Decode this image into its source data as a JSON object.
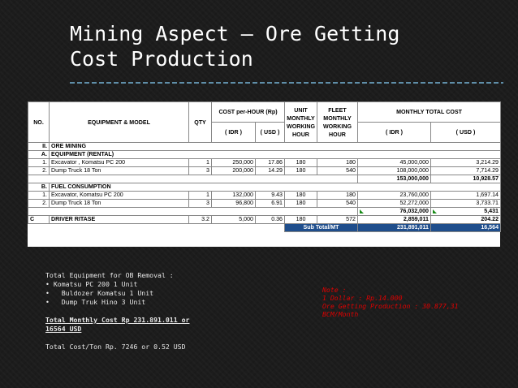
{
  "title": {
    "line1": "Mining Aspect – Ore Getting",
    "line2": "Cost Production"
  },
  "table": {
    "header": {
      "no": "NO.",
      "equipment": "EQUIPMENT & MODEL",
      "qty": "QTY",
      "cost_hour": "COST per-HOUR  (Rp)",
      "unit_monthly": "UNIT MONTHLY WORKING HOUR",
      "fleet_monthly": "FLEET MONTHLY WORKING HOUR",
      "monthly_total": "MONTHLY TOTAL  COST",
      "idr": "( IDR )",
      "usd": "( USD )"
    },
    "section_ii": {
      "no": "II.",
      "label": "ORE MINING"
    },
    "section_a": {
      "no": "A.",
      "label": "EQUIPMENT (RENTAL)"
    },
    "rows_a": [
      {
        "no": "1.",
        "equip": "Excavator , Komatsu PC 200",
        "qty": "1",
        "cost_idr": "250,000",
        "cost_usd": "17.86",
        "unit_hr": "180",
        "fleet_hr": "180",
        "total_idr": "45,000,000",
        "total_usd": "3,214.29"
      },
      {
        "no": "2.",
        "equip": "Dump Truck 18 Ton",
        "qty": "3",
        "cost_idr": "200,000",
        "cost_usd": "14.29",
        "unit_hr": "180",
        "fleet_hr": "540",
        "total_idr": "108,000,000",
        "total_usd": "7,714.29"
      }
    ],
    "subtotal_a": {
      "idr": "153,000,000",
      "usd": "10,928.57"
    },
    "section_b": {
      "no": "B.",
      "label": "FUEL CONSUMPTION"
    },
    "rows_b": [
      {
        "no": "1.",
        "equip": "Excavator, Komatsu PC 200",
        "qty": "1",
        "cost_idr": "132,000",
        "cost_usd": "9.43",
        "unit_hr": "180",
        "fleet_hr": "180",
        "total_idr": "23,760,000",
        "total_usd": "1,697.14"
      },
      {
        "no": "2.",
        "equip": "Dump Truck 18 Ton",
        "qty": "3",
        "cost_idr": "96,800",
        "cost_usd": "6.91",
        "unit_hr": "180",
        "fleet_hr": "540",
        "total_idr": "52,272,000",
        "total_usd": "3,733.71"
      }
    ],
    "subtotal_b": {
      "idr": "76,032,000",
      "usd": "5,431"
    },
    "row_c": {
      "no": "C",
      "label": "DRIVER RITASE",
      "qty": "3.2",
      "cost_idr": "5,000",
      "cost_usd": "0.36",
      "unit_hr": "180",
      "fleet_hr": "572",
      "total_idr": "2,859,011",
      "total_usd": "204.22"
    },
    "subtotal_mt": {
      "label": "Sub Total/MT",
      "idr": "231,891,011",
      "usd": "16,564"
    }
  },
  "left_panel": {
    "heading": "Total Equipment for OB Removal :",
    "items": [
      "Komatsu PC 200 1 Unit",
      "Buldozer Komatsu 1 Unit",
      "Dump Truk Hino 3 Unit"
    ],
    "monthly_cost_1": "Total Monthly Cost Rp 231.891.011 or",
    "monthly_cost_2": "16564 USD",
    "cost_per_ton": "Total Cost/Ton Rp. 7246 or 0.52 USD"
  },
  "note": {
    "line1": "Note :",
    "line2": "1 Dollar : Rp.14.000",
    "line3": "Ore Getting Production : 30.877,31",
    "line4": "BCM/Month"
  },
  "colors": {
    "total_fill": "#1f4e8c",
    "note_text": "#e00000",
    "rule": "#5f8ea8"
  }
}
